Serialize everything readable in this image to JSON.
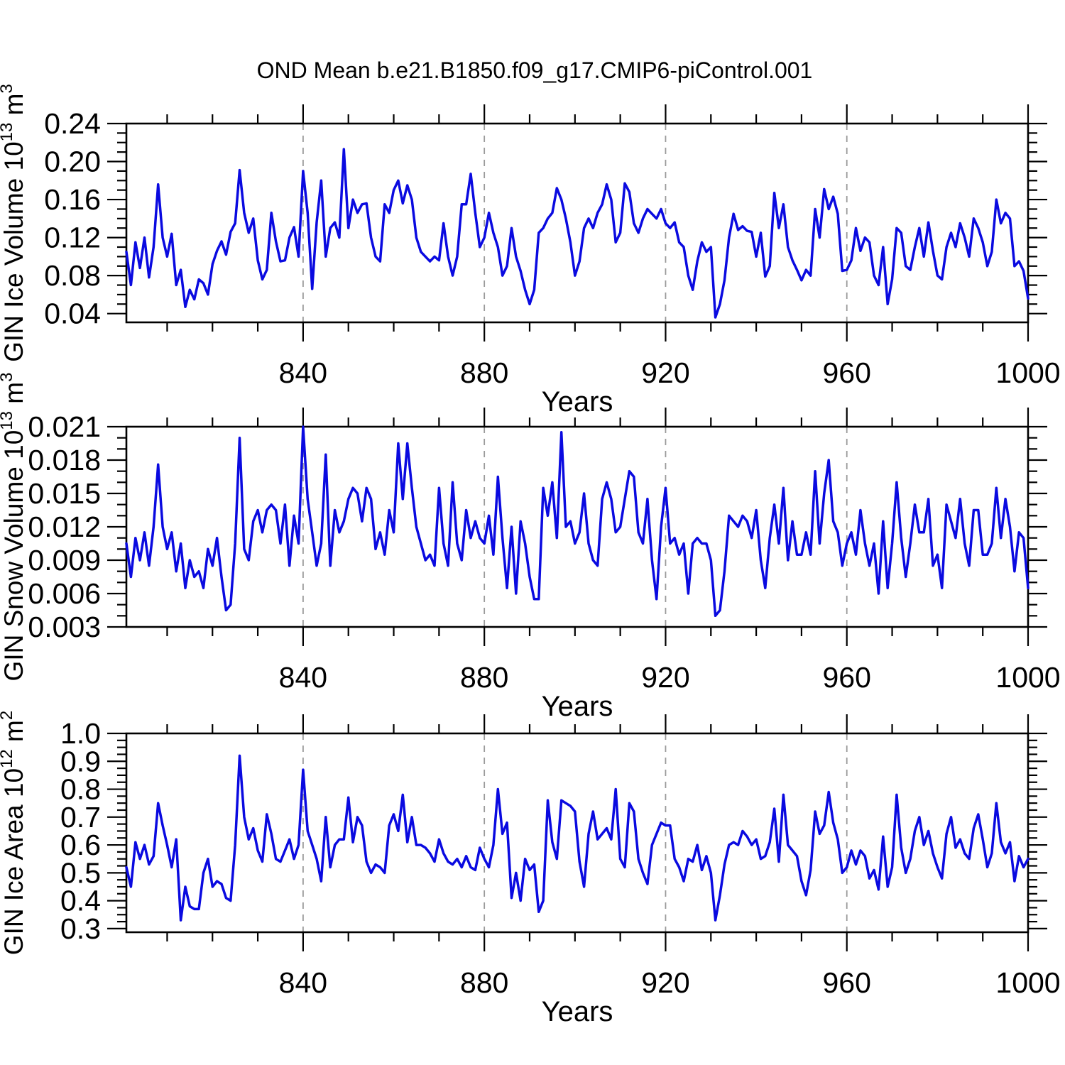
{
  "title": "OND Mean b.e21.B1850.f09_g17.CMIP6-piControl.001",
  "line_color": "#0a0ae0",
  "grid_color": "#9a9a9a",
  "chart_data": [
    {
      "type": "line",
      "ylabel_parts": {
        "main": "GIN Ice Volume 10",
        "exp": "13",
        "unit": " m",
        "unit_exp": "3"
      },
      "xlabel": "Years",
      "xlim": [
        801,
        1000
      ],
      "x_start": 801,
      "x_step": 1,
      "ylim": [
        0.0308,
        0.24
      ],
      "yticks": [
        0.04,
        0.08,
        0.12,
        0.16,
        0.2,
        0.24
      ],
      "ytick_labels": [
        "0.04",
        "0.08",
        "0.12",
        "0.16",
        "0.20",
        "0.24"
      ],
      "y_minor_step": 0.01,
      "xticks": [
        840,
        880,
        920,
        960,
        1000
      ],
      "xtick_labels": [
        "840",
        "880",
        "920",
        "960",
        "1000"
      ],
      "x_minor_step": 10,
      "grid_x": [
        840,
        880,
        920,
        960
      ],
      "values": [
        0.105,
        0.07,
        0.115,
        0.088,
        0.12,
        0.078,
        0.11,
        0.176,
        0.12,
        0.1,
        0.124,
        0.07,
        0.086,
        0.047,
        0.065,
        0.055,
        0.076,
        0.072,
        0.06,
        0.092,
        0.106,
        0.116,
        0.102,
        0.126,
        0.135,
        0.191,
        0.146,
        0.125,
        0.14,
        0.096,
        0.076,
        0.086,
        0.146,
        0.116,
        0.095,
        0.096,
        0.12,
        0.131,
        0.1,
        0.19,
        0.146,
        0.066,
        0.136,
        0.18,
        0.1,
        0.13,
        0.136,
        0.12,
        0.213,
        0.13,
        0.16,
        0.146,
        0.155,
        0.156,
        0.12,
        0.1,
        0.095,
        0.155,
        0.146,
        0.17,
        0.18,
        0.156,
        0.175,
        0.16,
        0.12,
        0.105,
        0.1,
        0.095,
        0.1,
        0.096,
        0.135,
        0.1,
        0.08,
        0.1,
        0.155,
        0.155,
        0.187,
        0.146,
        0.11,
        0.12,
        0.146,
        0.125,
        0.11,
        0.08,
        0.09,
        0.13,
        0.1,
        0.085,
        0.065,
        0.05,
        0.065,
        0.125,
        0.13,
        0.14,
        0.146,
        0.172,
        0.16,
        0.14,
        0.115,
        0.08,
        0.095,
        0.13,
        0.14,
        0.13,
        0.146,
        0.155,
        0.176,
        0.16,
        0.115,
        0.125,
        0.177,
        0.168,
        0.135,
        0.125,
        0.14,
        0.15,
        0.145,
        0.14,
        0.15,
        0.135,
        0.13,
        0.136,
        0.115,
        0.11,
        0.08,
        0.065,
        0.095,
        0.115,
        0.105,
        0.11,
        0.036,
        0.05,
        0.075,
        0.12,
        0.145,
        0.128,
        0.132,
        0.127,
        0.126,
        0.1,
        0.125,
        0.079,
        0.09,
        0.167,
        0.13,
        0.155,
        0.11,
        0.096,
        0.086,
        0.075,
        0.086,
        0.08,
        0.15,
        0.12,
        0.171,
        0.15,
        0.163,
        0.145,
        0.085,
        0.086,
        0.096,
        0.13,
        0.106,
        0.12,
        0.115,
        0.08,
        0.07,
        0.11,
        0.05,
        0.076,
        0.13,
        0.125,
        0.09,
        0.086,
        0.11,
        0.13,
        0.1,
        0.136,
        0.106,
        0.08,
        0.076,
        0.11,
        0.125,
        0.11,
        0.135,
        0.12,
        0.1,
        0.14,
        0.13,
        0.115,
        0.09,
        0.105,
        0.16,
        0.135,
        0.146,
        0.14,
        0.09,
        0.095,
        0.085,
        0.056
      ]
    },
    {
      "type": "line",
      "ylabel_parts": {
        "main": "GIN Snow Volume 10",
        "exp": "13",
        "unit": " m",
        "unit_exp": "3"
      },
      "xlabel": "Years",
      "xlim": [
        801,
        1000
      ],
      "x_start": 801,
      "x_step": 1,
      "ylim": [
        0.003,
        0.021
      ],
      "yticks": [
        0.003,
        0.006,
        0.009,
        0.012,
        0.015,
        0.018,
        0.021
      ],
      "ytick_labels": [
        "0.003",
        "0.006",
        "0.009",
        "0.012",
        "0.015",
        "0.018",
        "0.021"
      ],
      "y_minor_step": 0.001,
      "xticks": [
        840,
        880,
        920,
        960,
        1000
      ],
      "xtick_labels": [
        "840",
        "880",
        "920",
        "960",
        "1000"
      ],
      "x_minor_step": 10,
      "grid_x": [
        840,
        880,
        920,
        960
      ],
      "values": [
        0.0105,
        0.0075,
        0.011,
        0.009,
        0.0115,
        0.0085,
        0.012,
        0.0176,
        0.012,
        0.01,
        0.0115,
        0.008,
        0.0105,
        0.0065,
        0.009,
        0.0075,
        0.008,
        0.0065,
        0.01,
        0.0085,
        0.011,
        0.0075,
        0.0045,
        0.005,
        0.0105,
        0.02,
        0.01,
        0.009,
        0.0125,
        0.0135,
        0.0115,
        0.0135,
        0.014,
        0.0135,
        0.0105,
        0.014,
        0.0085,
        0.013,
        0.0105,
        0.021,
        0.0145,
        0.0115,
        0.0085,
        0.0105,
        0.0185,
        0.0085,
        0.0135,
        0.0115,
        0.0125,
        0.0145,
        0.0155,
        0.015,
        0.0125,
        0.0155,
        0.0145,
        0.01,
        0.0115,
        0.0095,
        0.0135,
        0.0115,
        0.0195,
        0.0145,
        0.0195,
        0.0155,
        0.012,
        0.0105,
        0.009,
        0.0095,
        0.0085,
        0.0155,
        0.0105,
        0.0085,
        0.016,
        0.0105,
        0.009,
        0.0135,
        0.011,
        0.0125,
        0.011,
        0.0105,
        0.013,
        0.0095,
        0.0165,
        0.011,
        0.0065,
        0.012,
        0.006,
        0.0125,
        0.0105,
        0.0075,
        0.0055,
        0.0055,
        0.0155,
        0.013,
        0.016,
        0.011,
        0.0205,
        0.012,
        0.0125,
        0.0105,
        0.0115,
        0.015,
        0.0105,
        0.009,
        0.0085,
        0.0145,
        0.016,
        0.0145,
        0.0115,
        0.012,
        0.0145,
        0.017,
        0.0165,
        0.0115,
        0.0105,
        0.0145,
        0.009,
        0.0055,
        0.012,
        0.0155,
        0.0105,
        0.011,
        0.0095,
        0.0105,
        0.006,
        0.0105,
        0.011,
        0.0105,
        0.0105,
        0.009,
        0.004,
        0.0045,
        0.008,
        0.013,
        0.0125,
        0.012,
        0.013,
        0.0125,
        0.011,
        0.0135,
        0.009,
        0.0065,
        0.011,
        0.014,
        0.0105,
        0.0155,
        0.009,
        0.0125,
        0.0095,
        0.0095,
        0.0115,
        0.0095,
        0.017,
        0.0105,
        0.015,
        0.018,
        0.0125,
        0.0115,
        0.0085,
        0.0105,
        0.0115,
        0.0095,
        0.0135,
        0.0105,
        0.0085,
        0.0105,
        0.006,
        0.0125,
        0.0065,
        0.0105,
        0.016,
        0.011,
        0.0075,
        0.0105,
        0.014,
        0.0115,
        0.0115,
        0.0145,
        0.0085,
        0.0095,
        0.0065,
        0.014,
        0.0125,
        0.011,
        0.0145,
        0.0105,
        0.0085,
        0.0135,
        0.0135,
        0.0095,
        0.0095,
        0.0105,
        0.0155,
        0.011,
        0.0145,
        0.012,
        0.008,
        0.0115,
        0.011,
        0.0065
      ]
    },
    {
      "type": "line",
      "ylabel_parts": {
        "main": "GIN Ice Area 10",
        "exp": "12",
        "unit": " m",
        "unit_exp": "2"
      },
      "xlabel": "Years",
      "xlim": [
        801,
        1000
      ],
      "x_start": 801,
      "x_step": 1,
      "ylim": [
        0.287,
        1.0
      ],
      "yticks": [
        0.3,
        0.4,
        0.5,
        0.6,
        0.7,
        0.8,
        0.9,
        1.0
      ],
      "ytick_labels": [
        "0.3",
        "0.4",
        "0.5",
        "0.6",
        "0.7",
        "0.8",
        "0.9",
        "1.0"
      ],
      "y_minor_step": 0.025,
      "xticks": [
        840,
        880,
        920,
        960,
        1000
      ],
      "xtick_labels": [
        "840",
        "880",
        "920",
        "960",
        "1000"
      ],
      "x_minor_step": 10,
      "grid_x": [
        840,
        880,
        920,
        960
      ],
      "values": [
        0.52,
        0.45,
        0.61,
        0.55,
        0.6,
        0.53,
        0.56,
        0.75,
        0.67,
        0.6,
        0.52,
        0.62,
        0.33,
        0.45,
        0.38,
        0.37,
        0.37,
        0.5,
        0.55,
        0.45,
        0.47,
        0.46,
        0.41,
        0.4,
        0.6,
        0.92,
        0.7,
        0.62,
        0.66,
        0.58,
        0.54,
        0.71,
        0.64,
        0.55,
        0.54,
        0.58,
        0.62,
        0.55,
        0.6,
        0.87,
        0.65,
        0.6,
        0.55,
        0.47,
        0.7,
        0.52,
        0.6,
        0.62,
        0.62,
        0.77,
        0.61,
        0.7,
        0.67,
        0.54,
        0.5,
        0.53,
        0.52,
        0.5,
        0.67,
        0.71,
        0.65,
        0.78,
        0.61,
        0.7,
        0.6,
        0.6,
        0.59,
        0.57,
        0.54,
        0.62,
        0.57,
        0.54,
        0.53,
        0.55,
        0.52,
        0.56,
        0.52,
        0.51,
        0.59,
        0.55,
        0.52,
        0.6,
        0.8,
        0.64,
        0.68,
        0.41,
        0.5,
        0.4,
        0.55,
        0.51,
        0.53,
        0.36,
        0.4,
        0.76,
        0.61,
        0.55,
        0.76,
        0.75,
        0.74,
        0.72,
        0.54,
        0.45,
        0.64,
        0.72,
        0.62,
        0.64,
        0.66,
        0.62,
        0.8,
        0.55,
        0.52,
        0.75,
        0.72,
        0.55,
        0.5,
        0.46,
        0.6,
        0.64,
        0.68,
        0.67,
        0.67,
        0.55,
        0.52,
        0.47,
        0.55,
        0.54,
        0.6,
        0.51,
        0.56,
        0.5,
        0.33,
        0.42,
        0.53,
        0.6,
        0.61,
        0.6,
        0.65,
        0.63,
        0.6,
        0.62,
        0.55,
        0.56,
        0.61,
        0.73,
        0.54,
        0.78,
        0.6,
        0.58,
        0.56,
        0.47,
        0.42,
        0.51,
        0.72,
        0.64,
        0.67,
        0.79,
        0.68,
        0.62,
        0.5,
        0.52,
        0.58,
        0.53,
        0.58,
        0.56,
        0.48,
        0.51,
        0.44,
        0.63,
        0.45,
        0.52,
        0.78,
        0.59,
        0.5,
        0.55,
        0.65,
        0.7,
        0.6,
        0.65,
        0.57,
        0.52,
        0.48,
        0.64,
        0.7,
        0.59,
        0.62,
        0.57,
        0.55,
        0.66,
        0.71,
        0.62,
        0.52,
        0.57,
        0.75,
        0.61,
        0.57,
        0.61,
        0.47,
        0.56,
        0.52,
        0.55
      ]
    }
  ]
}
